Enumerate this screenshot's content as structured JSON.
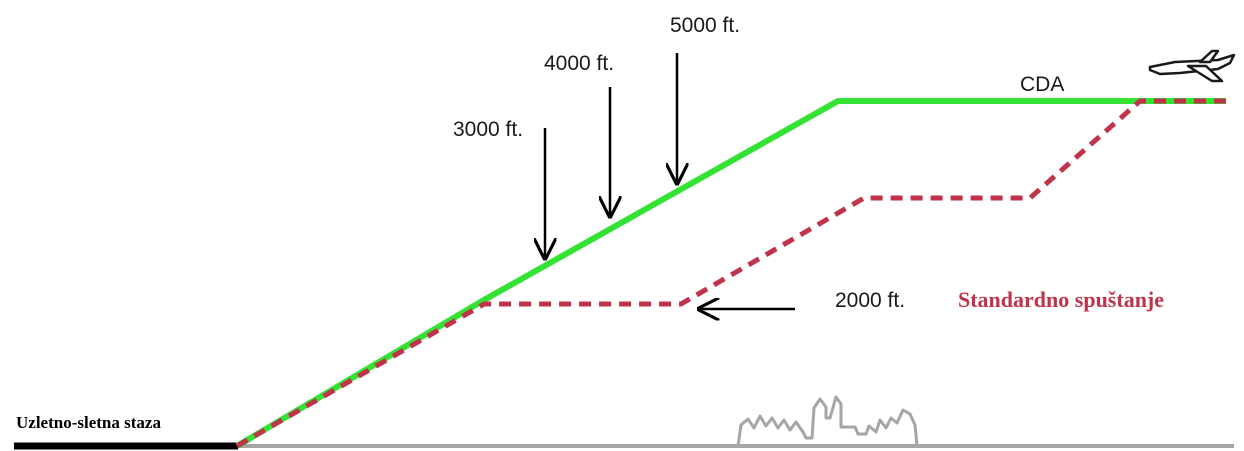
{
  "labels": {
    "runway": "Uzletno-sletna staza",
    "cda": "CDA",
    "standard": "Standardno spuštanje",
    "alt_2000": "2000 ft.",
    "alt_3000": "3000 ft.",
    "alt_4000": "4000 ft.",
    "alt_5000": "5000 ft."
  },
  "colors": {
    "cda_path": "#33e233",
    "standard_path": "#c0334a",
    "standard_label": "#c0334a",
    "ground": "#a6a6a6",
    "runway": "#000000",
    "arrows": "#000000"
  },
  "icons": {
    "aircraft": "airplane-icon",
    "city": "city-skyline-icon"
  }
}
